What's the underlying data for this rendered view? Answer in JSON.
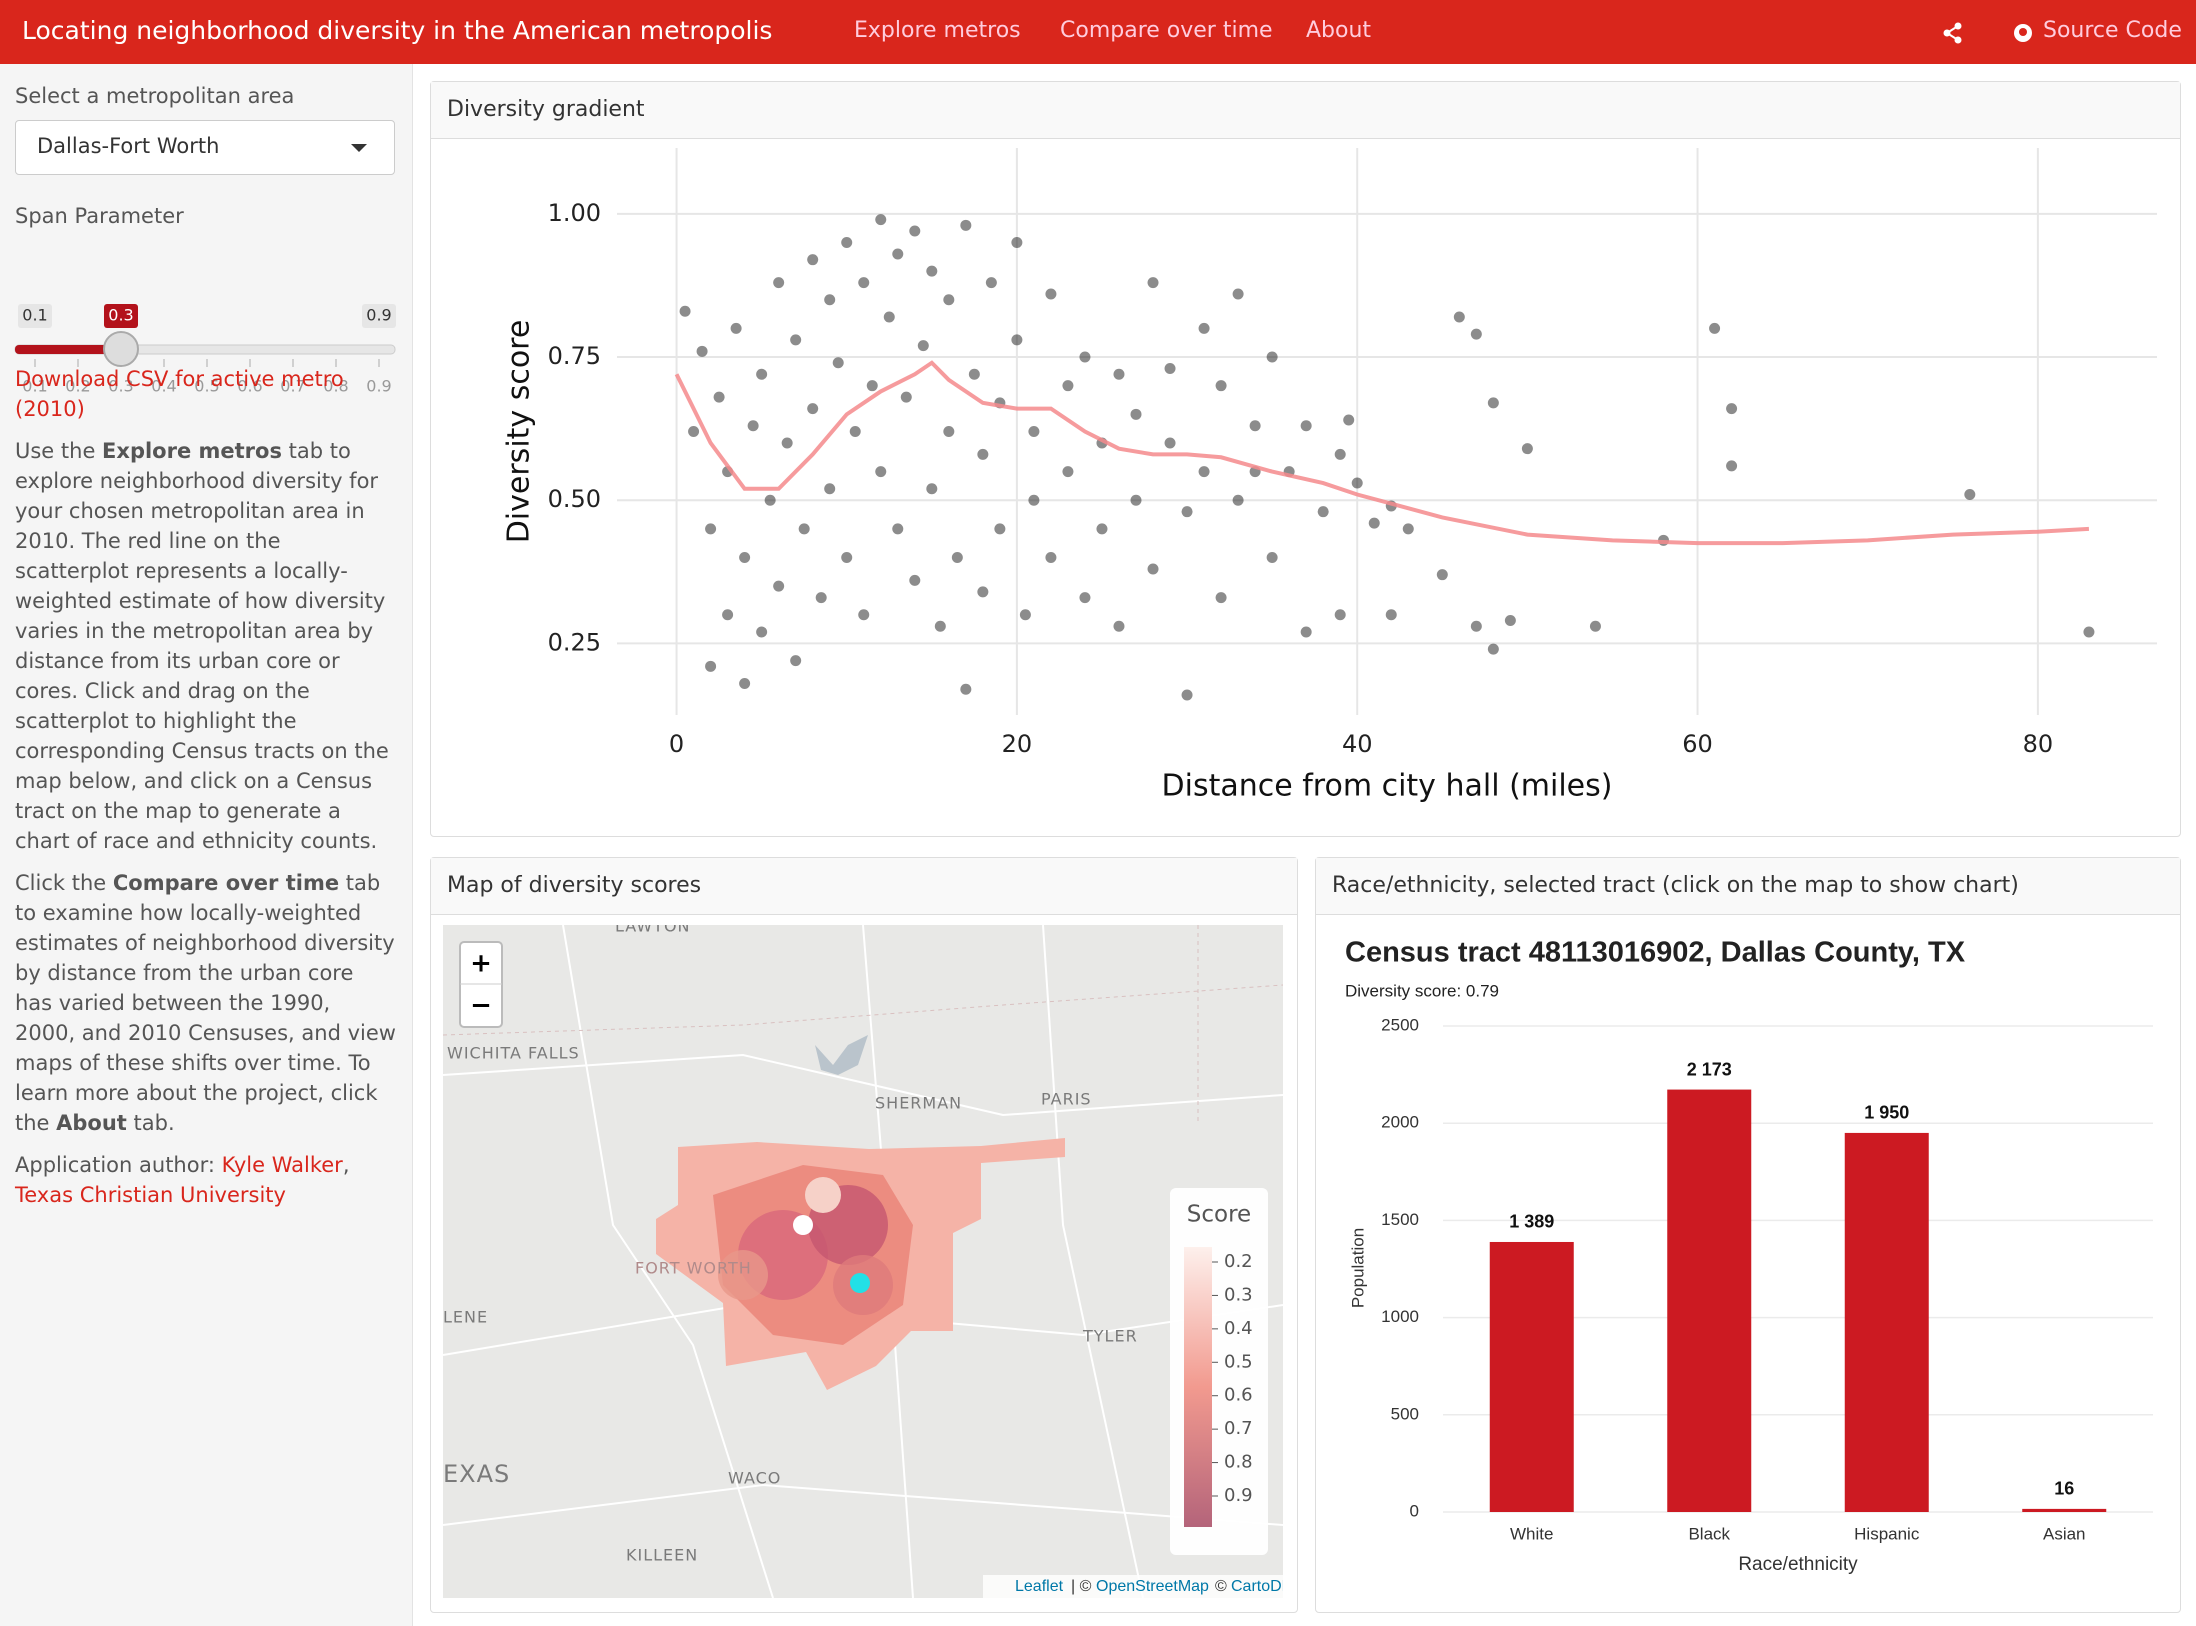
{
  "navbar": {
    "title": "Locating neighborhood diversity in the American metropolis",
    "tabs": [
      "Explore metros",
      "Compare over time",
      "About"
    ],
    "source_code": "Source Code"
  },
  "sidebar": {
    "metro_label": "Select a metropolitan area",
    "metro_selected": "Dallas-Fort Worth",
    "span_label": "Span Parameter",
    "span": {
      "min": 0.1,
      "max": 0.9,
      "value": 0.3,
      "ticks": [
        0.1,
        0.2,
        0.3,
        0.4,
        0.5,
        0.6,
        0.7,
        0.8,
        0.9
      ]
    },
    "download_link": "Download CSV for active metro (2010)",
    "help_1": [
      "Use the ",
      "Explore metros",
      " tab to explore neighborhood diversity for your chosen metropolitan area in 2010. The red line on the scatterplot represents a locally-weighted estimate of how diversity varies in the metropolitan area by distance from its urban core or cores. Click and drag on the scatterplot to highlight the corresponding Census tracts on the map below, and click on a Census tract on the map to generate a chart of race and ethnicity counts."
    ],
    "help_2": [
      "Click the ",
      "Compare over time",
      " tab to examine how locally-weighted estimates of neighborhood diversity by distance from the urban core has varied between the 1990, 2000, and 2010 Censuses, and view maps of these shifts over time. To learn more about the project, click the ",
      "About",
      " tab."
    ],
    "author": [
      "Application author: ",
      "Kyle Walker",
      ",",
      "Texas Christian University"
    ]
  },
  "map": {
    "title": "Map of diversity scores",
    "places": [
      "LAWTON",
      "WICHITA FALLS",
      "SHERMAN",
      "PARIS",
      "FORT WORTH",
      "LENE",
      "TYLER",
      "EXAS",
      "WACO",
      "KILLEEN"
    ],
    "zoom_in": "+",
    "zoom_out": "−",
    "legend": {
      "title": "Score",
      "ticks": [
        0.2,
        0.3,
        0.4,
        0.5,
        0.6,
        0.7,
        0.8,
        0.9
      ]
    },
    "attribution": [
      "Leaflet",
      "| ©",
      "OpenStreetMap",
      "©",
      "CartoDB"
    ]
  },
  "chart_data": [
    {
      "type": "scatter",
      "title": "Diversity gradient",
      "x_label": "Distance from city hall (miles)",
      "y_label": "Diversity score",
      "xlim": [
        -3.5,
        87
      ],
      "ylim": [
        0.125,
        1.115
      ],
      "xticks": [
        0,
        20,
        40,
        60,
        80
      ],
      "yticks": [
        0.25,
        {
          "value": 0.5,
          "label": "0.50"
        },
        0.75,
        {
          "value": 1,
          "label": "1.00"
        }
      ],
      "grid": true,
      "color": "#000000",
      "x": [
        0.5,
        1,
        1.5,
        2,
        2,
        2.5,
        3,
        3,
        3.5,
        4,
        4,
        4.5,
        5,
        5,
        5.5,
        6,
        6,
        6.5,
        7,
        7,
        7.5,
        8,
        8,
        8.5,
        9,
        9,
        9.5,
        10,
        10,
        10.5,
        11,
        11,
        11.5,
        12,
        12,
        12.5,
        13,
        13,
        13.5,
        14,
        14,
        14.5,
        15,
        15,
        15.5,
        16,
        16,
        16.5,
        17,
        17,
        17.5,
        18,
        18,
        18.5,
        19,
        19,
        20,
        20,
        20.5,
        21,
        21,
        22,
        22,
        23,
        23,
        24,
        24,
        25,
        25,
        26,
        26,
        27,
        27,
        28,
        28,
        29,
        29,
        30,
        30,
        31,
        31,
        32,
        32,
        33,
        33,
        34,
        35,
        35,
        36,
        37,
        37,
        38,
        39,
        39,
        40,
        41,
        42,
        43,
        45,
        46,
        47,
        47,
        48,
        48,
        49,
        50,
        54,
        58,
        61,
        62,
        62,
        76,
        83,
        39.5,
        42,
        34
      ],
      "values": [
        0.83,
        0.62,
        0.76,
        0.45,
        0.21,
        0.68,
        0.55,
        0.3,
        0.8,
        0.4,
        0.18,
        0.63,
        0.72,
        0.27,
        0.5,
        0.88,
        0.35,
        0.6,
        0.78,
        0.22,
        0.45,
        0.92,
        0.66,
        0.33,
        0.85,
        0.52,
        0.74,
        0.95,
        0.4,
        0.62,
        0.88,
        0.3,
        0.7,
        0.99,
        0.55,
        0.82,
        0.45,
        0.93,
        0.68,
        0.97,
        0.36,
        0.77,
        0.9,
        0.52,
        0.28,
        0.85,
        0.62,
        0.4,
        0.98,
        0.17,
        0.72,
        0.58,
        0.34,
        0.88,
        0.67,
        0.45,
        0.95,
        0.78,
        0.3,
        0.62,
        0.5,
        0.86,
        0.4,
        0.7,
        0.55,
        0.33,
        0.75,
        0.6,
        0.45,
        0.72,
        0.28,
        0.65,
        0.5,
        0.88,
        0.38,
        0.6,
        0.73,
        0.16,
        0.48,
        0.8,
        0.55,
        0.7,
        0.33,
        0.86,
        0.5,
        0.63,
        0.4,
        0.75,
        0.55,
        0.27,
        0.63,
        0.48,
        0.3,
        0.58,
        0.53,
        0.46,
        0.3,
        0.45,
        0.37,
        0.82,
        0.79,
        0.28,
        0.67,
        0.24,
        0.29,
        0.59,
        0.28,
        0.43,
        0.8,
        0.66,
        0.56,
        0.51,
        0.27,
        0.64,
        0.49,
        0.55
      ],
      "trend": {
        "color": "#f4898c",
        "x": [
          0,
          2,
          4,
          6,
          8,
          10,
          12,
          14,
          15,
          16,
          18,
          20,
          22,
          24,
          26,
          28,
          30,
          32,
          35,
          38,
          40,
          45,
          50,
          55,
          60,
          65,
          70,
          75,
          80,
          83
        ],
        "values": [
          0.72,
          0.6,
          0.52,
          0.52,
          0.58,
          0.65,
          0.69,
          0.72,
          0.74,
          0.71,
          0.67,
          0.66,
          0.66,
          0.62,
          0.59,
          0.58,
          0.58,
          0.575,
          0.55,
          0.53,
          0.51,
          0.47,
          0.44,
          0.43,
          0.425,
          0.425,
          0.43,
          0.44,
          0.445,
          0.45
        ]
      }
    },
    {
      "type": "bar",
      "panel_title": "Race/ethnicity, selected tract (click on the map to show chart)",
      "title": "Census tract 48113016902, Dallas County, TX",
      "subtitle": "Diversity score: 0.79",
      "x_label": "Race/ethnicity",
      "y_label": "Population",
      "categories": [
        "White",
        "Black",
        "Hispanic",
        "Asian"
      ],
      "values": [
        1389,
        2173,
        1950,
        16
      ],
      "value_labels": [
        "1 389",
        "2 173",
        "1 950",
        "16"
      ],
      "color": "#cc1a22",
      "ylim": [
        0,
        2500
      ],
      "yticks": [
        0,
        500,
        1000,
        1500,
        2000,
        2500
      ],
      "grid": true
    }
  ]
}
